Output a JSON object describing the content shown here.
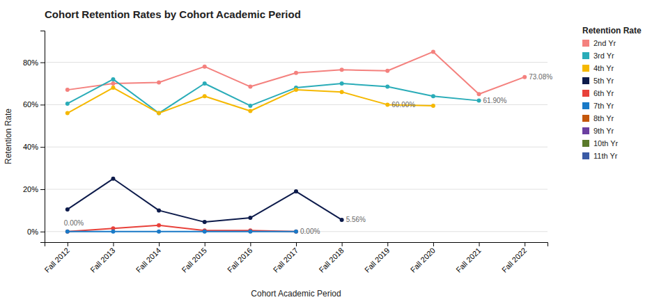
{
  "chart_data": {
    "type": "line",
    "title": "Cohort Retention Rates by Cohort Academic Period",
    "x_label": "Cohort Academic Period",
    "y_label": "Retention Rate",
    "legend_title": "Retention Rate",
    "categories": [
      "Fall 2012",
      "Fall 2013",
      "Fall 2014",
      "Fall 2015",
      "Fall 2016",
      "Fall 2017",
      "Fall 2018",
      "Fall 2019",
      "Fall 2020",
      "Fall 2021",
      "Fall 2022"
    ],
    "series": [
      {
        "name": "2nd Yr",
        "color": "#F4817E",
        "values": [
          67.0,
          70.0,
          70.5,
          78.0,
          68.5,
          75.0,
          76.5,
          76.0,
          85.0,
          65.0,
          73.08
        ],
        "annotations": [
          {
            "category": "Fall 2022",
            "label": "73.08%"
          }
        ]
      },
      {
        "name": "3rd Yr",
        "color": "#2AACB8",
        "values": [
          60.5,
          72.0,
          56.0,
          70.0,
          59.5,
          68.0,
          70.0,
          68.5,
          64.0,
          61.9,
          null
        ],
        "annotations": [
          {
            "category": "Fall 2021",
            "label": "61.90%"
          }
        ]
      },
      {
        "name": "4th Yr",
        "color": "#F5B800",
        "values": [
          56.0,
          68.0,
          56.0,
          64.0,
          57.0,
          67.0,
          66.0,
          60.0,
          59.5,
          null,
          null
        ],
        "annotations": [
          {
            "category": "Fall 2019",
            "label": "60.00%"
          }
        ]
      },
      {
        "name": "5th Yr",
        "color": "#0D1B4B",
        "values": [
          10.5,
          25.0,
          10.0,
          4.5,
          6.5,
          19.0,
          5.56,
          null,
          null,
          null,
          null
        ],
        "annotations": [
          {
            "category": "Fall 2018",
            "label": "5.56%"
          }
        ]
      },
      {
        "name": "6th Yr",
        "color": "#E8413A",
        "values": [
          0.0,
          1.5,
          3.0,
          0.5,
          0.5,
          0.0,
          null,
          null,
          null,
          null,
          null
        ],
        "annotations": [
          {
            "category": "Fall 2012",
            "label": "0.00%"
          },
          {
            "category": "Fall 2017",
            "label": "0.00%"
          }
        ]
      },
      {
        "name": "7th Yr",
        "color": "#1A7AC7",
        "values": [
          0.0,
          0.0,
          0.0,
          0.0,
          0.0,
          0.0,
          null,
          null,
          null,
          null,
          null
        ]
      },
      {
        "name": "8th Yr",
        "color": "#C4570B",
        "values": [
          null,
          null,
          null,
          null,
          null,
          null,
          null,
          null,
          null,
          null,
          null
        ]
      },
      {
        "name": "9th Yr",
        "color": "#6B3FA0",
        "values": [
          null,
          null,
          null,
          null,
          null,
          null,
          null,
          null,
          null,
          null,
          null
        ]
      },
      {
        "name": "10th Yr",
        "color": "#5A7A2B",
        "values": [
          null,
          null,
          null,
          null,
          null,
          null,
          null,
          null,
          null,
          null,
          null
        ]
      },
      {
        "name": "11th Yr",
        "color": "#3B5BA5",
        "values": [
          null,
          null,
          null,
          null,
          null,
          null,
          null,
          null,
          null,
          null,
          null
        ]
      }
    ],
    "ylim": [
      -5,
      95
    ],
    "yticks": [
      {
        "value": 0,
        "label": "0%"
      },
      {
        "value": 20,
        "label": "20%"
      },
      {
        "value": 40,
        "label": "40%"
      },
      {
        "value": 60,
        "label": "60%"
      },
      {
        "value": 80,
        "label": "80%"
      }
    ],
    "grid": true,
    "legend": "right",
    "marker": "circle"
  }
}
